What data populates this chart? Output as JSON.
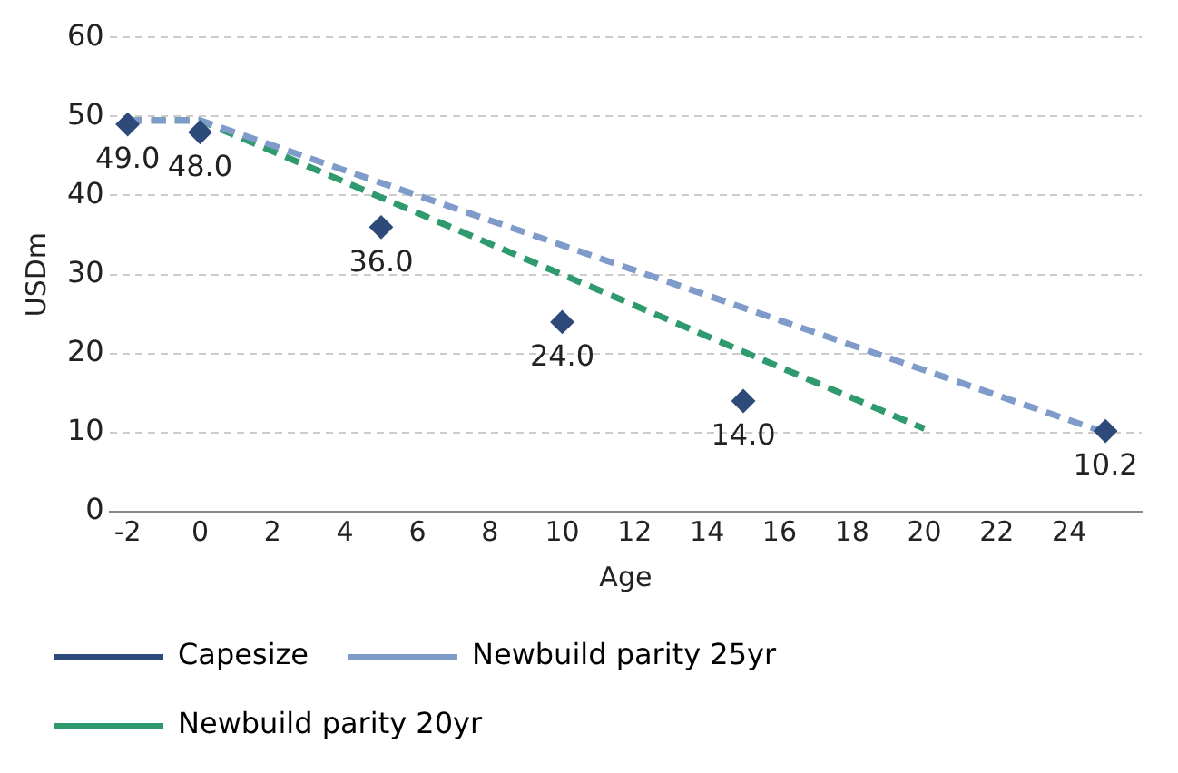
{
  "chart_data": {
    "type": "line",
    "xlabel": "Age",
    "ylabel": "USDm",
    "xlim": [
      -2.5,
      26
    ],
    "xticks": [
      -2,
      0,
      2,
      4,
      6,
      8,
      10,
      12,
      14,
      16,
      18,
      20,
      22,
      24
    ],
    "ylim": [
      0,
      60
    ],
    "yticks": [
      0,
      10,
      20,
      30,
      40,
      50,
      60
    ],
    "grid": "y",
    "legend": "bottom",
    "series": [
      {
        "name": "Capesize",
        "type": "scatter",
        "marker": "diamond",
        "color": "#2e4a7a",
        "x": [
          -2,
          0,
          5,
          10,
          15,
          25
        ],
        "values": [
          49.0,
          48.0,
          36.0,
          24.0,
          14.0,
          10.2
        ],
        "value_labels": [
          "49.0",
          "48.0",
          "36.0",
          "24.0",
          "14.0",
          "10.2"
        ]
      },
      {
        "name": "Newbuild parity 25yr",
        "type": "line",
        "line_style": "dashed",
        "color": "#7f9bc9",
        "x": [
          -2,
          0,
          25
        ],
        "values": [
          49.5,
          49.5,
          10
        ]
      },
      {
        "name": "Newbuild parity 20yr",
        "type": "line",
        "line_style": "dashed",
        "color": "#2e9a6e",
        "x": [
          -2,
          0,
          20
        ],
        "values": [
          49.5,
          49.5,
          10.5
        ]
      }
    ]
  }
}
